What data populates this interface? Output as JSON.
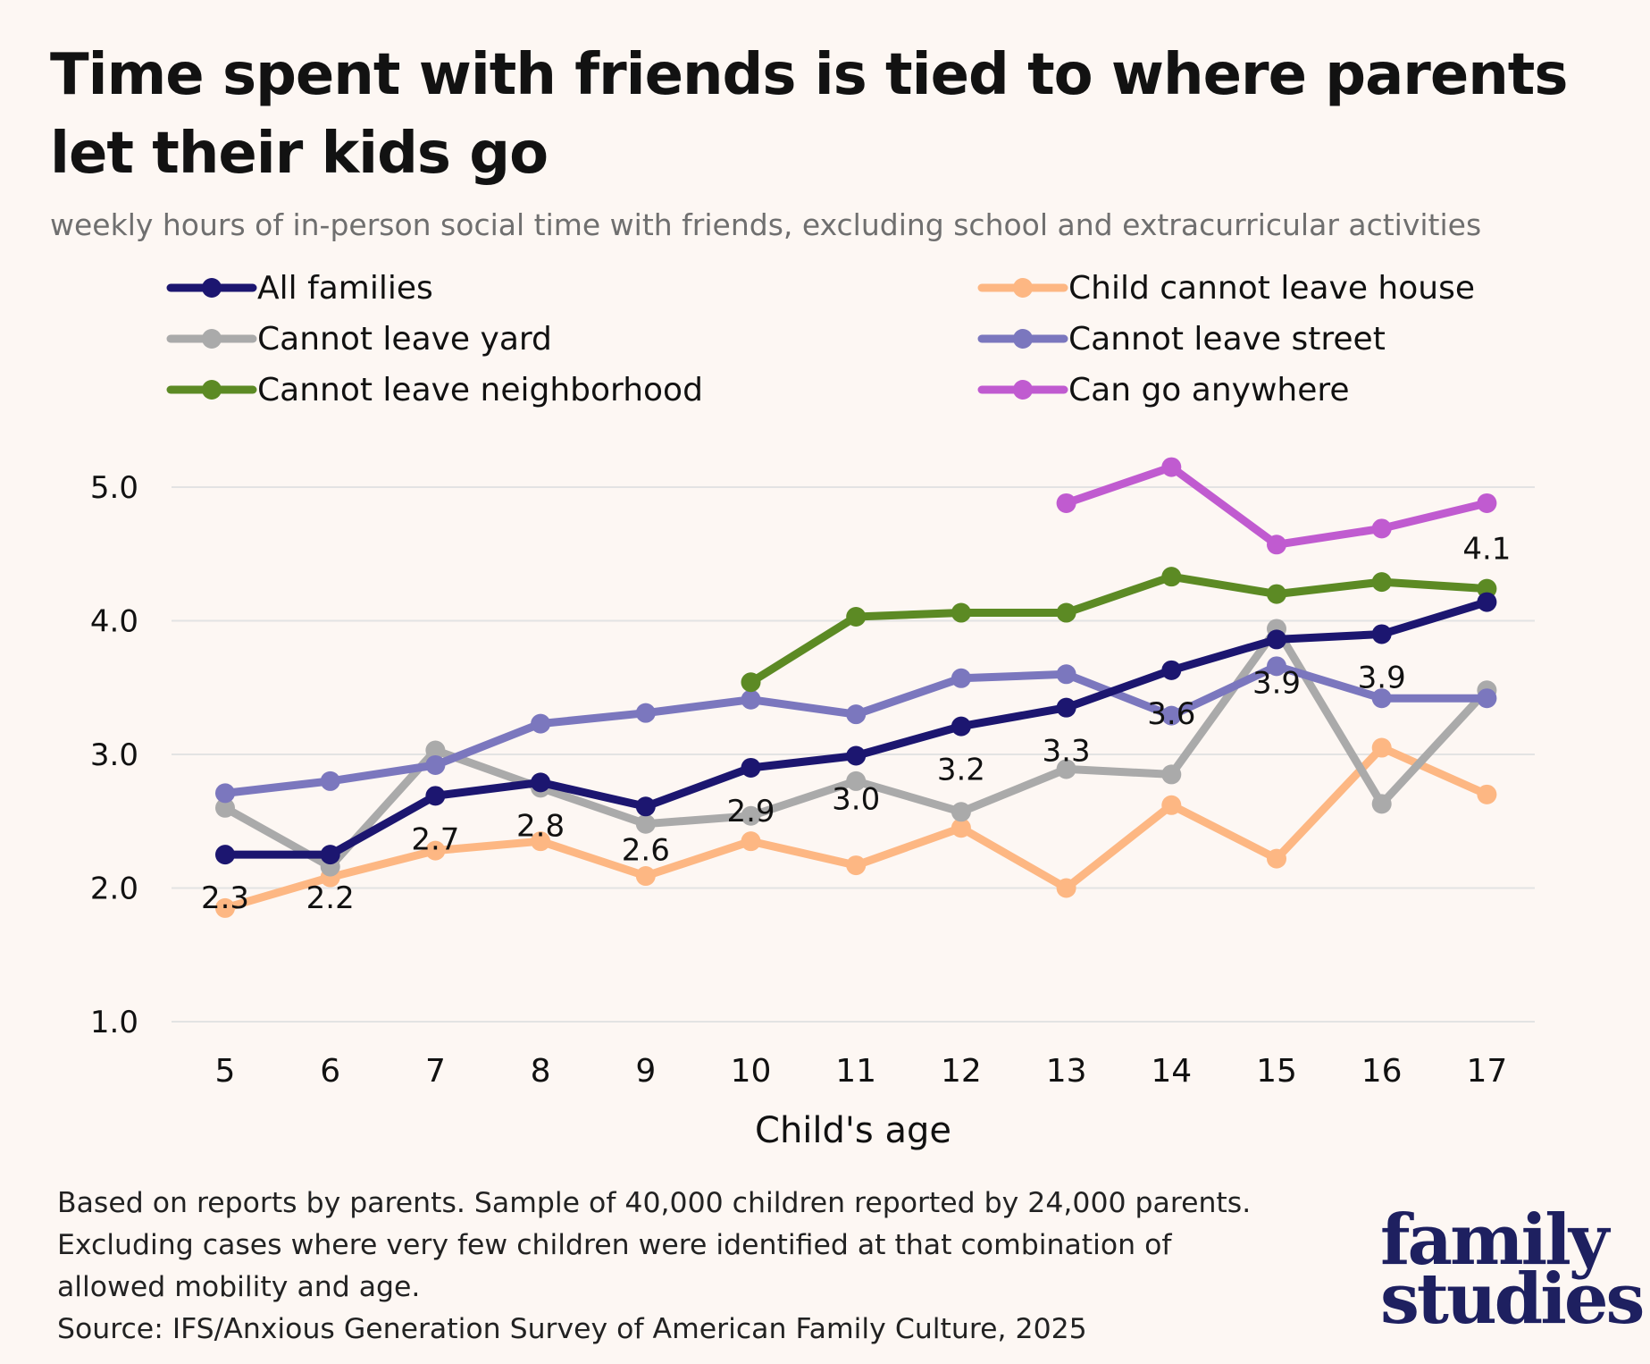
{
  "title": "Time spent with friends is tied to where parents let their kids go",
  "subtitle": "weekly hours of in-person social time with friends, excluding school and extracurricular activities",
  "footnote": {
    "lines": [
      "Based on reports by parents. Sample of 40,000 children reported by 24,000 parents.",
      "Excluding cases where very few children were identified at that combination of",
      "allowed mobility and age.",
      "Source: IFS/Anxious Generation Survey of American Family Culture, 2025"
    ]
  },
  "logo": {
    "line1": "family",
    "line2": "studies",
    "color": "#1e2060"
  },
  "chart_data": {
    "type": "line",
    "xlabel": "Child's age",
    "ylabel": "",
    "x": [
      5,
      6,
      7,
      8,
      9,
      10,
      11,
      12,
      13,
      14,
      15,
      16,
      17
    ],
    "ylim": [
      1.0,
      5.0
    ],
    "yticks": [
      "1.0",
      "2.0",
      "3.0",
      "4.0",
      "5.0"
    ],
    "grid": true,
    "legend_position": "top",
    "series": [
      {
        "name": "Child cannot leave house",
        "color": "#fdb783",
        "values": [
          1.85,
          2.08,
          2.28,
          2.35,
          2.09,
          2.35,
          2.17,
          2.45,
          2.0,
          2.62,
          2.22,
          3.05,
          2.7
        ]
      },
      {
        "name": "Cannot leave yard",
        "color": "#aaaaaa",
        "values": [
          2.6,
          2.16,
          3.03,
          2.75,
          2.48,
          2.54,
          2.8,
          2.57,
          2.89,
          2.85,
          3.94,
          2.63,
          3.48
        ]
      },
      {
        "name": "Cannot leave street",
        "color": "#7b77be",
        "values": [
          2.71,
          2.8,
          2.92,
          3.23,
          3.31,
          3.41,
          3.3,
          3.57,
          3.6,
          3.29,
          3.66,
          3.42,
          3.42
        ]
      },
      {
        "name": "Cannot leave neighborhood",
        "color": "#5c8a24",
        "values": [
          null,
          null,
          null,
          null,
          null,
          3.54,
          4.03,
          4.06,
          4.06,
          4.33,
          4.2,
          4.29,
          4.24
        ]
      },
      {
        "name": "Can go anywhere",
        "color": "#c05bd0",
        "values": [
          null,
          null,
          null,
          null,
          null,
          null,
          null,
          null,
          4.88,
          5.15,
          4.57,
          4.69,
          4.88
        ]
      },
      {
        "name": "All families",
        "color": "#1c1670",
        "values": [
          2.25,
          2.25,
          2.69,
          2.79,
          2.61,
          2.9,
          2.99,
          3.21,
          3.35,
          3.63,
          3.86,
          3.9,
          4.14
        ]
      }
    ],
    "legend_order": [
      "All families",
      "Child cannot leave house",
      "Cannot leave yard",
      "Cannot leave street",
      "Cannot leave neighborhood",
      "Can go anywhere"
    ],
    "data_labels": {
      "series": "All families",
      "labels": [
        "2.3",
        "2.2",
        "2.7",
        "2.8",
        "2.6",
        "2.9",
        "3.0",
        "3.2",
        "3.3",
        "3.6",
        "3.9",
        "3.9",
        "4.1"
      ]
    }
  }
}
